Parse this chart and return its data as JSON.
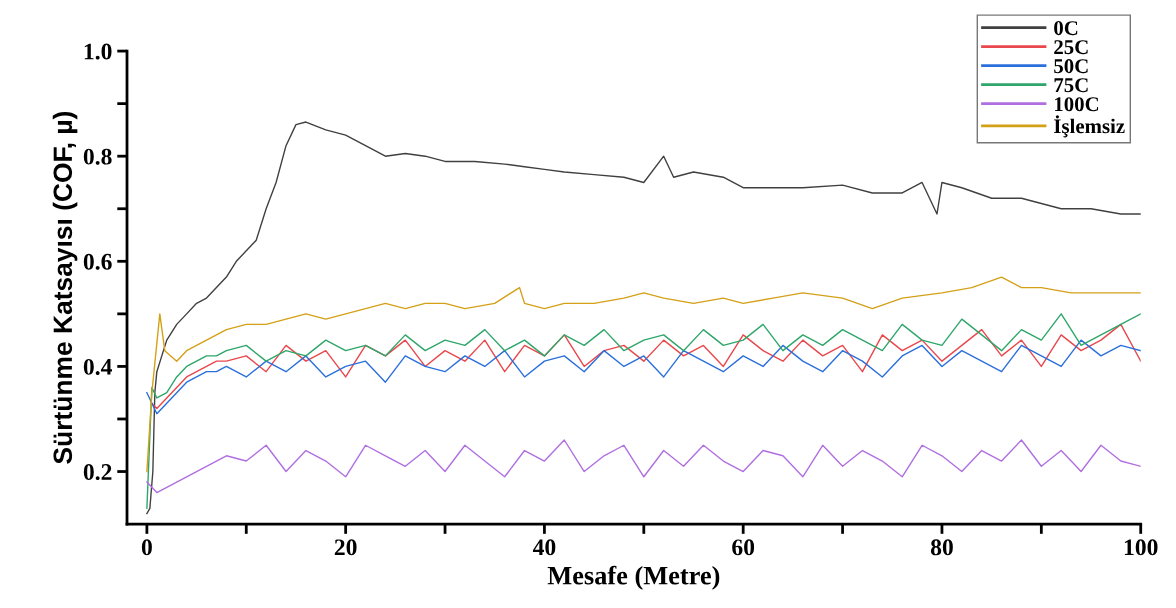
{
  "chart_data": {
    "type": "line",
    "xlabel": "Mesafe (Metre)",
    "ylabel": "Sürtünme Katsayısı (COF, µ)",
    "xlim": [
      -2,
      100
    ],
    "ylim": [
      0.1,
      1.0
    ],
    "xticks": [
      0,
      {
        "value": 10,
        "label": null
      },
      20,
      {
        "value": 30,
        "label": null
      },
      40,
      {
        "value": 50,
        "label": null
      },
      60,
      {
        "value": 70,
        "label": null
      },
      80,
      {
        "value": 90,
        "label": null
      },
      100
    ],
    "yticks": [
      {
        "value": 0.2,
        "label": "0.2"
      },
      {
        "value": 0.3,
        "label": null
      },
      {
        "value": 0.4,
        "label": "0.4"
      },
      {
        "value": 0.5,
        "label": null
      },
      {
        "value": 0.6,
        "label": "0.6"
      },
      {
        "value": 0.7,
        "label": null
      },
      {
        "value": 0.8,
        "label": "0.8"
      },
      {
        "value": 0.9,
        "label": null
      },
      {
        "value": 1.0,
        "label": "1.0"
      }
    ],
    "grid": false,
    "legend": "top right",
    "marker": "none",
    "line_style": "solid",
    "x": [
      0,
      0.5,
      1,
      2,
      3,
      4,
      5,
      6,
      7,
      8,
      10,
      12,
      14,
      16,
      18,
      20,
      22,
      24,
      26,
      28,
      30,
      32,
      34,
      36,
      38,
      40,
      42,
      44,
      46,
      48,
      50,
      52,
      54,
      56,
      58,
      60,
      62,
      64,
      66,
      68,
      70,
      72,
      74,
      76,
      78,
      80,
      82,
      84,
      86,
      88,
      90,
      92,
      94,
      96,
      98,
      100
    ],
    "series": [
      {
        "name": "0C",
        "color": "#404040",
        "x": [
          0,
          0.3,
          0.6,
          0.8,
          1,
          1.5,
          2,
          3,
          4,
          5,
          6,
          7,
          8,
          9,
          10,
          11,
          12,
          13,
          14,
          15,
          16,
          18,
          20,
          22,
          24,
          26,
          28,
          30,
          33,
          36,
          38,
          40,
          42,
          45,
          48,
          50,
          52,
          53,
          55,
          58,
          60,
          63,
          66,
          70,
          73,
          76,
          78,
          79.5,
          80,
          82,
          85,
          88,
          90,
          92,
          95,
          98,
          100
        ],
        "values": [
          0.12,
          0.13,
          0.2,
          0.35,
          0.39,
          0.42,
          0.45,
          0.48,
          0.5,
          0.52,
          0.53,
          0.55,
          0.57,
          0.6,
          0.62,
          0.64,
          0.7,
          0.75,
          0.82,
          0.86,
          0.865,
          0.85,
          0.84,
          0.82,
          0.8,
          0.805,
          0.8,
          0.79,
          0.79,
          0.785,
          0.78,
          0.775,
          0.77,
          0.765,
          0.76,
          0.75,
          0.8,
          0.76,
          0.77,
          0.76,
          0.74,
          0.74,
          0.74,
          0.745,
          0.73,
          0.73,
          0.75,
          0.69,
          0.75,
          0.74,
          0.72,
          0.72,
          0.71,
          0.7,
          0.7,
          0.69,
          0.69
        ]
      },
      {
        "name": "25C",
        "color": "#e8474b",
        "values": [
          null,
          0.33,
          0.32,
          0.34,
          0.36,
          0.38,
          0.39,
          0.4,
          0.41,
          0.41,
          0.42,
          0.39,
          0.44,
          0.41,
          0.43,
          0.38,
          0.44,
          0.42,
          0.45,
          0.4,
          0.43,
          0.41,
          0.45,
          0.39,
          0.44,
          0.42,
          0.46,
          0.4,
          0.43,
          0.44,
          0.41,
          0.45,
          0.42,
          0.44,
          0.4,
          0.46,
          0.43,
          0.41,
          0.45,
          0.42,
          0.44,
          0.39,
          0.46,
          0.43,
          0.45,
          0.41,
          0.44,
          0.47,
          0.42,
          0.45,
          0.4,
          0.46,
          0.43,
          0.45,
          0.48,
          0.41
        ]
      },
      {
        "name": "50C",
        "color": "#2a6fdb",
        "values": [
          0.35,
          0.33,
          0.31,
          0.33,
          0.35,
          0.37,
          0.38,
          0.39,
          0.39,
          0.4,
          0.38,
          0.41,
          0.39,
          0.42,
          0.38,
          0.4,
          0.41,
          0.37,
          0.42,
          0.4,
          0.39,
          0.42,
          0.4,
          0.43,
          0.38,
          0.41,
          0.42,
          0.39,
          0.43,
          0.4,
          0.42,
          0.38,
          0.43,
          0.41,
          0.39,
          0.42,
          0.4,
          0.44,
          0.41,
          0.39,
          0.43,
          0.41,
          0.38,
          0.42,
          0.44,
          0.4,
          0.43,
          0.41,
          0.39,
          0.44,
          0.42,
          0.4,
          0.45,
          0.42,
          0.44,
          0.43
        ]
      },
      {
        "name": "75C",
        "color": "#2ea66a",
        "values": [
          0.13,
          0.36,
          0.34,
          0.35,
          0.38,
          0.4,
          0.41,
          0.42,
          0.42,
          0.43,
          0.44,
          0.41,
          0.43,
          0.42,
          0.45,
          0.43,
          0.44,
          0.42,
          0.46,
          0.43,
          0.45,
          0.44,
          0.47,
          0.43,
          0.45,
          0.42,
          0.46,
          0.44,
          0.47,
          0.43,
          0.45,
          0.46,
          0.43,
          0.47,
          0.44,
          0.45,
          0.48,
          0.43,
          0.46,
          0.44,
          0.47,
          0.45,
          0.43,
          0.48,
          0.45,
          0.44,
          0.49,
          0.46,
          0.43,
          0.47,
          0.45,
          0.5,
          0.44,
          0.46,
          0.48,
          0.5
        ]
      },
      {
        "name": "100C",
        "color": "#b06fe0",
        "values": [
          0.18,
          0.17,
          0.16,
          0.17,
          0.18,
          0.19,
          0.2,
          0.21,
          0.22,
          0.23,
          0.22,
          0.25,
          0.2,
          0.24,
          0.22,
          0.19,
          0.25,
          0.23,
          0.21,
          0.24,
          0.2,
          0.25,
          0.22,
          0.19,
          0.24,
          0.22,
          0.26,
          0.2,
          0.23,
          0.25,
          0.19,
          0.24,
          0.21,
          0.25,
          0.22,
          0.2,
          0.24,
          0.23,
          0.19,
          0.25,
          0.21,
          0.24,
          0.22,
          0.19,
          0.25,
          0.23,
          0.2,
          0.24,
          0.22,
          0.26,
          0.21,
          0.24,
          0.2,
          0.25,
          0.22,
          0.21
        ]
      },
      {
        "name": "İşlemsiz",
        "color": "#d4a017",
        "x": [
          0,
          0.5,
          1.3,
          1.8,
          3,
          4,
          5,
          6,
          8,
          10,
          12,
          14,
          16,
          18,
          20,
          22,
          24,
          26,
          28,
          30,
          32,
          35,
          37.5,
          38,
          40,
          42,
          45,
          48,
          50,
          52,
          55,
          58,
          60,
          63,
          66,
          70,
          73,
          76,
          80,
          83,
          86,
          88,
          90,
          93,
          96,
          100
        ],
        "values": [
          0.2,
          0.35,
          0.5,
          0.43,
          0.41,
          0.43,
          0.44,
          0.45,
          0.47,
          0.48,
          0.48,
          0.49,
          0.5,
          0.49,
          0.5,
          0.51,
          0.52,
          0.51,
          0.52,
          0.52,
          0.51,
          0.52,
          0.55,
          0.52,
          0.51,
          0.52,
          0.52,
          0.53,
          0.54,
          0.53,
          0.52,
          0.53,
          0.52,
          0.53,
          0.54,
          0.53,
          0.51,
          0.53,
          0.54,
          0.55,
          0.57,
          0.55,
          0.55,
          0.54,
          0.54,
          0.54
        ]
      }
    ]
  }
}
